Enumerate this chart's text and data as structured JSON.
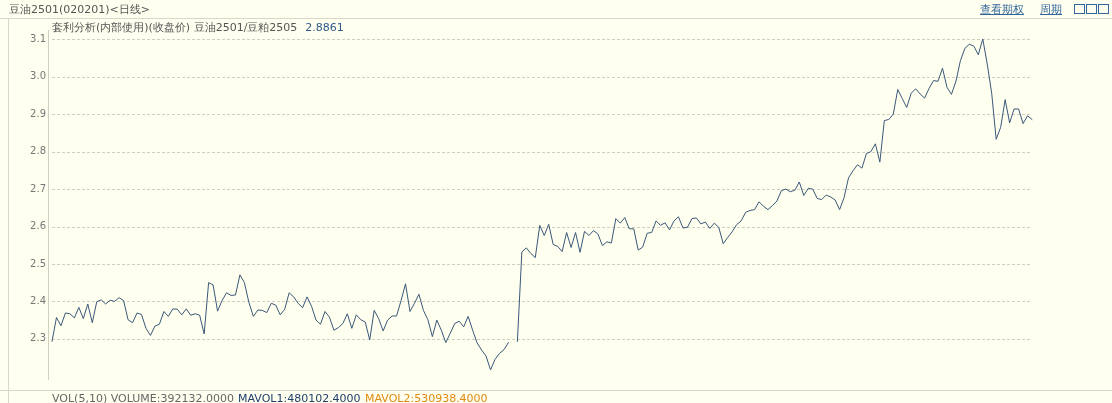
{
  "chart_data": {
    "type": "line",
    "title": "豆油2501(020201)<日线>",
    "subtitle": "套利分析(内部使用)(收盘价) 豆油2501/豆粕2505",
    "annotations": [
      "查看期权",
      "周期",
      "2.8861",
      "VOL(5,10) VOLUME:392132.0000",
      "MAVOL1:480102.4000",
      "MAVOL2:530938.4000"
    ],
    "series": [
      {
        "color": "#3b5878",
        "values": [
          2.293,
          2.357,
          2.335,
          2.369,
          2.367,
          2.356,
          2.384,
          2.354,
          2.393,
          2.343,
          2.399,
          2.404,
          2.393,
          2.403,
          2.4,
          2.41,
          2.402,
          2.351,
          2.343,
          2.369,
          2.365,
          2.328,
          2.309,
          2.334,
          2.339,
          2.373,
          2.36,
          2.38,
          2.379,
          2.364,
          2.38,
          2.363,
          2.367,
          2.363,
          2.313,
          2.45,
          2.444,
          2.374,
          2.402,
          2.423,
          2.416,
          2.417,
          2.471,
          2.45,
          2.397,
          2.36,
          2.377,
          2.376,
          2.37,
          2.395,
          2.39,
          2.364,
          2.379,
          2.423,
          2.412,
          2.395,
          2.383,
          2.412,
          2.387,
          2.35,
          2.339,
          2.373,
          2.358,
          2.323,
          2.33,
          2.341,
          2.367,
          2.328,
          2.364,
          2.351,
          2.345,
          2.297,
          2.376,
          2.354,
          2.321,
          2.35,
          2.361,
          2.361,
          2.402,
          2.447,
          2.373,
          2.395,
          2.419,
          2.376,
          2.351,
          2.306,
          2.35,
          2.323,
          2.29,
          2.315,
          2.341,
          2.347,
          2.332,
          2.36,
          2.323,
          2.289,
          2.27,
          2.254,
          2.217,
          2.245,
          2.261,
          2.271,
          2.29
        ]
      },
      {
        "color": "#3b5878",
        "values": [
          null,
          null,
          null,
          null,
          null,
          null,
          null,
          null,
          null,
          null,
          null,
          null,
          null,
          null,
          null,
          null,
          null,
          null,
          null,
          null,
          null,
          null,
          null,
          null,
          null,
          null,
          null,
          null,
          null,
          null,
          null,
          null,
          null,
          null,
          null,
          null,
          null,
          null,
          null,
          null,
          null,
          null,
          null,
          null,
          null,
          null,
          null,
          null,
          null,
          null,
          null,
          null,
          null,
          null,
          null,
          null,
          null,
          null,
          null,
          null,
          null,
          null,
          null,
          null,
          null,
          null,
          null,
          null,
          null,
          null,
          null,
          null,
          null,
          null,
          null,
          null,
          null,
          null,
          null,
          null,
          null,
          null,
          null,
          null,
          null,
          null,
          null,
          null,
          null,
          null,
          null,
          null,
          null,
          null,
          null,
          null,
          null,
          null,
          null,
          null,
          null,
          null,
          null,
          null,
          2.293,
          2.532,
          2.543,
          2.528,
          2.517,
          2.603,
          2.576,
          2.606,
          2.552,
          2.547,
          2.533,
          2.584,
          2.544,
          2.584,
          2.531,
          2.587,
          2.576,
          2.589,
          2.58,
          2.549,
          2.559,
          2.556,
          2.621,
          2.609,
          2.624,
          2.594,
          2.594,
          2.537,
          2.545,
          2.582,
          2.584,
          2.615,
          2.603,
          2.61,
          2.591,
          2.615,
          2.626,
          2.596,
          2.598,
          2.621,
          2.623,
          2.607,
          2.612,
          2.595,
          2.609,
          2.598,
          2.554,
          2.571,
          2.586,
          2.605,
          2.615,
          2.638,
          2.643,
          2.645,
          2.666,
          2.654,
          2.645,
          2.656,
          2.668,
          2.696,
          2.7,
          2.693,
          2.697,
          2.719,
          2.683,
          2.702,
          2.7,
          2.675,
          2.672,
          2.684,
          2.679,
          2.671,
          2.645,
          2.677,
          2.73,
          2.749,
          2.765,
          2.756,
          2.795,
          2.8,
          2.821,
          2.772,
          2.883,
          2.886,
          2.9,
          2.966,
          2.942,
          2.918,
          2.956,
          2.968,
          2.954,
          2.943,
          2.969,
          2.99,
          2.988,
          3.023,
          2.972,
          2.953,
          2.988,
          3.043,
          3.076,
          3.087,
          3.082,
          3.059,
          3.101,
          3.034,
          2.955,
          2.833,
          2.865,
          2.939,
          2.877,
          2.914,
          2.914,
          2.875,
          2.896,
          2.886
        ]
      }
    ],
    "ylim": [
      2.19,
      3.125
    ],
    "yticks": [
      2.3,
      2.4,
      2.5,
      2.6,
      2.7,
      2.8,
      2.9,
      {
        "value": 3,
        "label": "3.0"
      },
      3.1
    ],
    "grid": "y",
    "legend": false,
    "marker": "none",
    "line_style": "solid"
  }
}
